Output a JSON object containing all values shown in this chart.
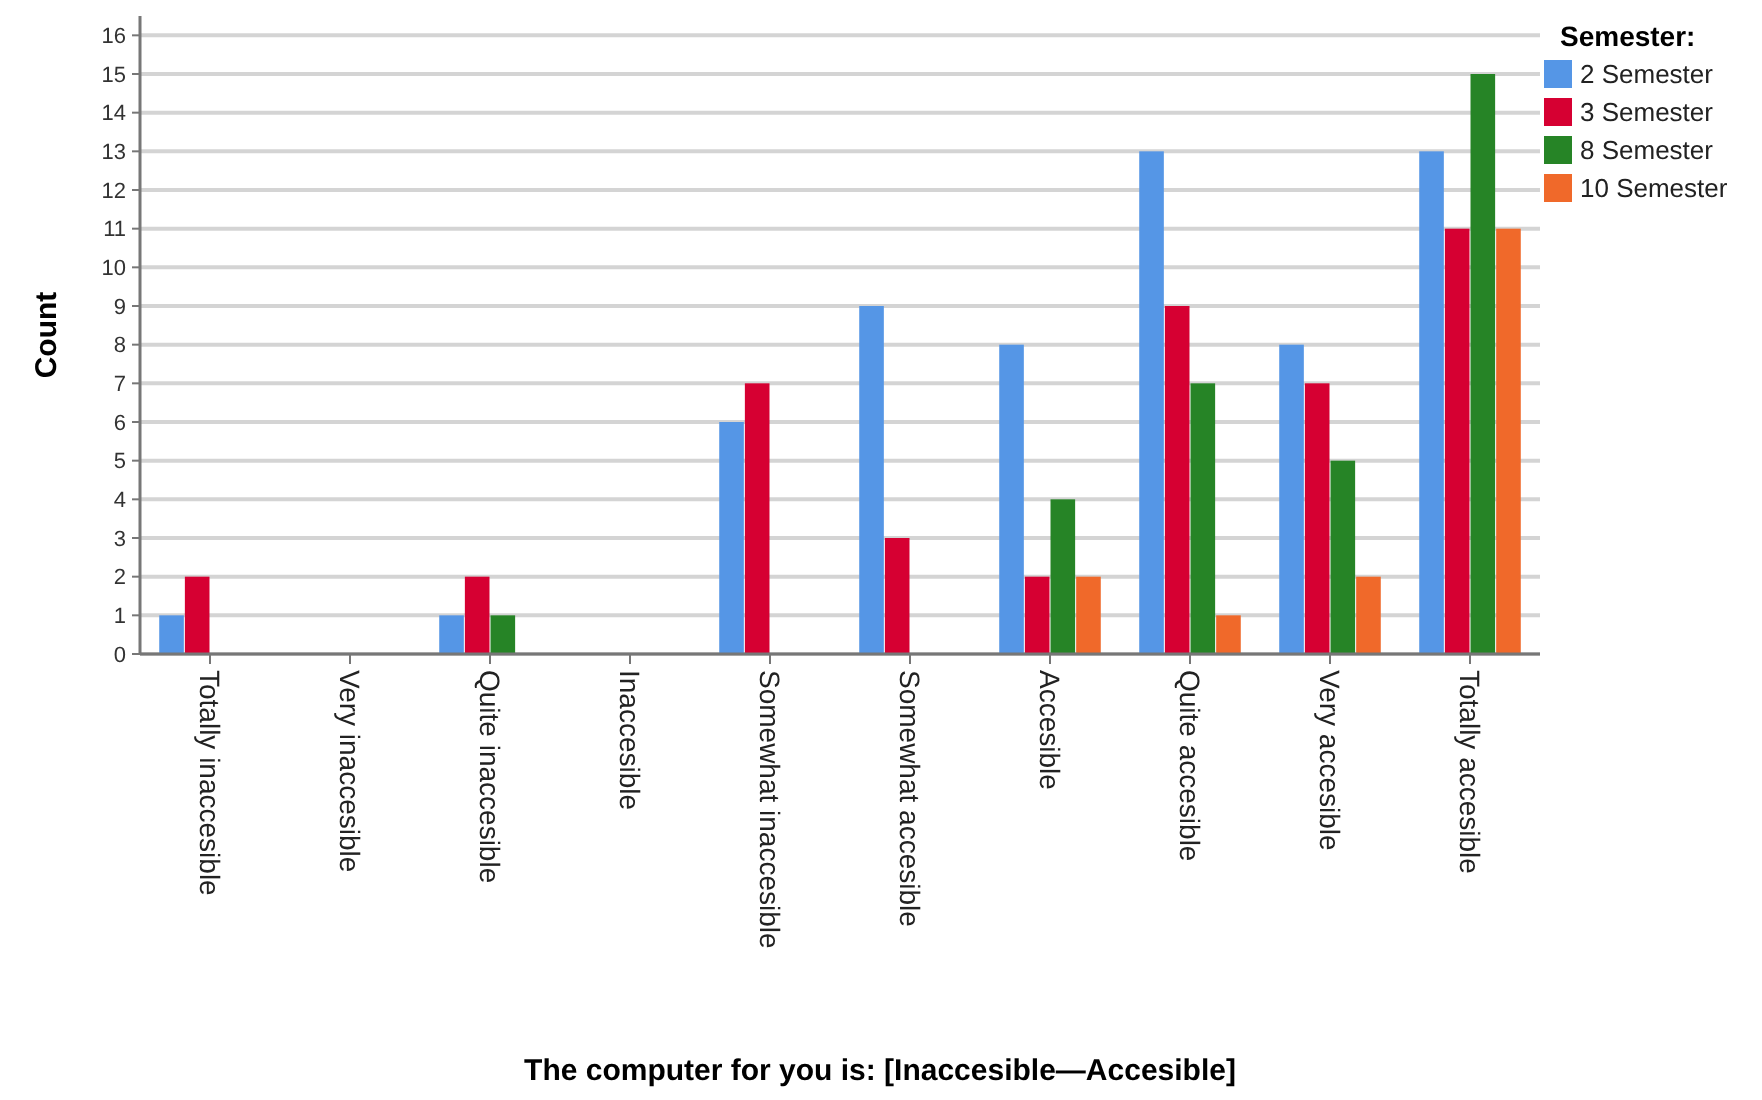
{
  "chart_data": {
    "type": "bar",
    "xlabel": "The computer for you is: [Inaccesible—Accesible]",
    "ylabel": "Count",
    "legend_title": "Semester:",
    "categories": [
      "Totally inaccesible",
      "Very inaccesible",
      "Quite inaccesible",
      "Inaccesible",
      "Somewhat inaccesible",
      "Somewhat accesible",
      "Accesible",
      "Quite accesible",
      "Very accesible",
      "Totally accesible"
    ],
    "series": [
      {
        "name": "2 Semester",
        "color": "#5596e6",
        "values": [
          1,
          null,
          1,
          null,
          6,
          9,
          8,
          13,
          8,
          13
        ]
      },
      {
        "name": "3 Semester",
        "color": "#d60032",
        "values": [
          2,
          null,
          2,
          null,
          7,
          3,
          2,
          9,
          7,
          11
        ]
      },
      {
        "name": "8 Semester",
        "color": "#268426",
        "values": [
          null,
          null,
          1,
          null,
          null,
          null,
          4,
          7,
          5,
          15
        ]
      },
      {
        "name": "10 Semester",
        "color": "#f0692a",
        "values": [
          null,
          null,
          null,
          null,
          null,
          null,
          2,
          1,
          2,
          11
        ]
      }
    ],
    "ylim": [
      0,
      16.5
    ],
    "yticks": [
      0,
      1,
      2,
      3,
      4,
      5,
      6,
      7,
      8,
      9,
      10,
      11,
      12,
      13,
      14,
      15,
      16
    ],
    "grid": "y",
    "legend": "top right"
  }
}
